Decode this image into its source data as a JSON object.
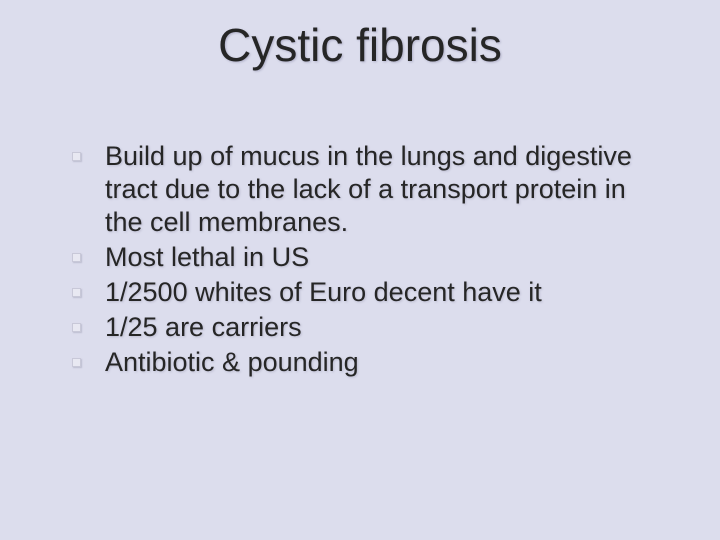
{
  "slide": {
    "title": "Cystic fibrosis",
    "bullets": [
      "Build up of mucus in the lungs and digestive tract due to the lack of a transport protein in the cell membranes.",
      "Most lethal in US",
      "1/2500 whites of Euro decent have it",
      "1/25 are carriers",
      "Antibiotic & pounding"
    ],
    "background_color": "#dcdded",
    "title_fontsize": 46,
    "body_fontsize": 27,
    "text_color": "#262626",
    "bullet_marker_color": "#e8e8f2"
  }
}
